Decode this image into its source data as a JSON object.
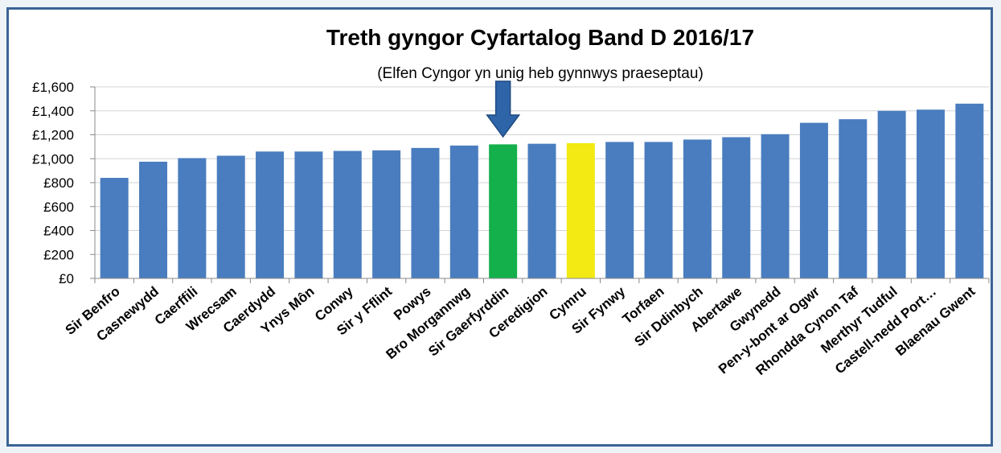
{
  "chart_data": {
    "type": "bar",
    "title": "Treth gyngor Cyfartalog Band D 2016/17",
    "subtitle": "(Elfen Cyngor yn unig heb gynnwys praeseptau)",
    "xlabel": "",
    "ylabel": "",
    "ylim": [
      0,
      1600
    ],
    "y_ticks": [
      "£0",
      "£200",
      "£400",
      "£600",
      "£800",
      "£1,000",
      "£1,200",
      "£1,400",
      "£1,600"
    ],
    "grid": true,
    "categories": [
      "Sir Benfro",
      "Casnewydd",
      "Caerffili",
      "Wrecsam",
      "Caerdydd",
      "Ynys Môn",
      "Conwy",
      "Sir y Fflint",
      "Powys",
      "Bro Morgannwg",
      "Sir Gaerfyrddin",
      "Ceredigion",
      "Cymru",
      "Sir Fynwy",
      "Torfaen",
      "Sir Ddinbych",
      "Abertawe",
      "Gwynedd",
      "Pen-y-bont ar Ogwr",
      "Rhondda Cynon Taf",
      "Merthyr Tudful",
      "Castell-nedd Port…",
      "Blaenau Gwent"
    ],
    "values": [
      840,
      975,
      1005,
      1025,
      1060,
      1060,
      1065,
      1070,
      1090,
      1110,
      1120,
      1125,
      1130,
      1140,
      1140,
      1160,
      1180,
      1205,
      1300,
      1330,
      1400,
      1410,
      1460
    ],
    "colors": {
      "default": "#4a7dbf",
      "highlight": "#14b04b",
      "average": "#f2ea12",
      "arrow": "#2e65a8",
      "grid": "#cfd3d8"
    },
    "highlight_category": "Sir Gaerfyrddin",
    "average_category": "Cymru",
    "annotation": "down-arrow-above-Sir-Gaerfyrddin"
  }
}
